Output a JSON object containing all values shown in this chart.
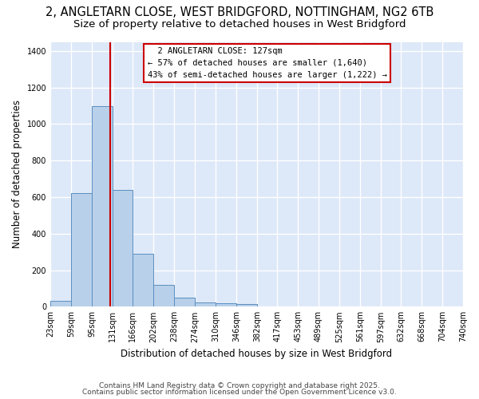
{
  "title1": "2, ANGLETARN CLOSE, WEST BRIDGFORD, NOTTINGHAM, NG2 6TB",
  "title2": "Size of property relative to detached houses in West Bridgford",
  "xlabel": "Distribution of detached houses by size in West Bridgford",
  "ylabel": "Number of detached properties",
  "bin_edges": [
    23,
    59,
    95,
    131,
    166,
    202,
    238,
    274,
    310,
    346,
    382,
    417,
    453,
    489,
    525,
    561,
    597,
    632,
    668,
    704,
    740
  ],
  "bar_heights": [
    30,
    620,
    1100,
    640,
    290,
    120,
    50,
    25,
    20,
    15,
    0,
    0,
    0,
    0,
    0,
    0,
    0,
    0,
    0,
    0
  ],
  "bar_color": "#b8d0ea",
  "bar_edge_color": "#5a8fc0",
  "bg_color": "#dde8f8",
  "grid_color": "#ffffff",
  "red_line_x": 127,
  "annotation_title": "2 ANGLETARN CLOSE: 127sqm",
  "annotation_line1": "← 57% of detached houses are smaller (1,640)",
  "annotation_line2": "43% of semi-detached houses are larger (1,222) →",
  "annotation_box_color": "#ffffff",
  "annotation_border_color": "#cc0000",
  "red_line_color": "#cc0000",
  "ylim": [
    0,
    1450
  ],
  "yticks": [
    0,
    200,
    400,
    600,
    800,
    1000,
    1200,
    1400
  ],
  "footer1": "Contains HM Land Registry data © Crown copyright and database right 2025.",
  "footer2": "Contains public sector information licensed under the Open Government Licence v3.0.",
  "title1_fontsize": 10.5,
  "title2_fontsize": 9.5,
  "annotation_fontsize": 7.5,
  "tick_fontsize": 7,
  "ylabel_fontsize": 8.5,
  "xlabel_fontsize": 8.5,
  "footer_fontsize": 6.5
}
